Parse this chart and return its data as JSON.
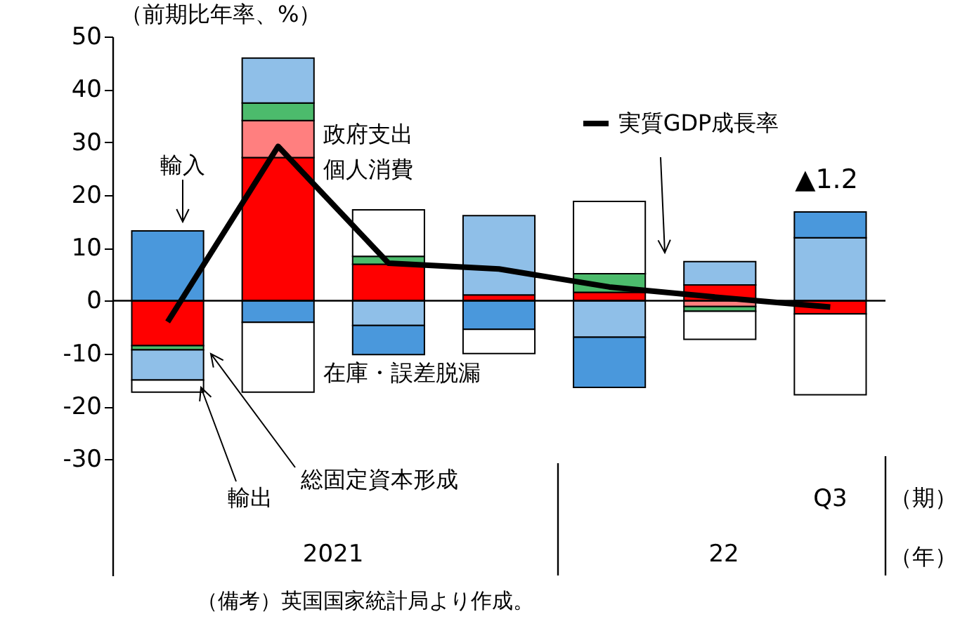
{
  "chart_data": {
    "type": "bar",
    "stacked": true,
    "ylabel": "（前期比年率、%）",
    "categories": [
      null,
      null,
      null,
      null,
      null,
      null,
      "Q3"
    ],
    "ylim": [
      -52,
      50
    ],
    "yticks": [
      -30,
      -20,
      -10,
      0,
      10,
      20,
      30,
      40,
      50
    ],
    "ref_lines": [
      {
        "axis": "y",
        "value": 0
      }
    ],
    "series": [
      {
        "name": "個人消費",
        "color": "#ff0000",
        "values": [
          -8.5,
          27.1,
          6.9,
          1.1,
          1.6,
          3.0,
          -2.5
        ]
      },
      {
        "name": "政府支出",
        "color": "#ff7f7f",
        "values": [
          null,
          7.0,
          null,
          null,
          null,
          -1.1,
          null
        ]
      },
      {
        "name": "総固定資本形成",
        "color": "#4cbb6c",
        "values": [
          -0.8,
          3.3,
          1.5,
          null,
          3.5,
          -0.9,
          null
        ]
      },
      {
        "name": "輸出",
        "color": "#8fbfe8",
        "values": [
          -5.7,
          8.5,
          -4.7,
          15.0,
          -6.9,
          4.4,
          11.9
        ]
      },
      {
        "name": "輸入",
        "color": "#4a98dc",
        "values": [
          13.2,
          -4.1,
          -5.5,
          -5.4,
          -9.5,
          null,
          4.9
        ]
      },
      {
        "name": "在庫・誤差脱漏",
        "color": "#ffffff",
        "values": [
          -2.3,
          -13.2,
          8.8,
          -4.6,
          13.7,
          -5.3,
          -15.3
        ]
      },
      {
        "name": "実質GDP成長率",
        "type": "line",
        "color": "#000000",
        "values": [
          -4.0,
          29.2,
          7.1,
          6.0,
          2.6,
          0.6,
          -1.2
        ]
      }
    ],
    "annotations": [
      "▲1.2",
      "2021",
      "22",
      "（期）",
      "（年）",
      "（備考）英国国家統計局より作成。"
    ]
  }
}
